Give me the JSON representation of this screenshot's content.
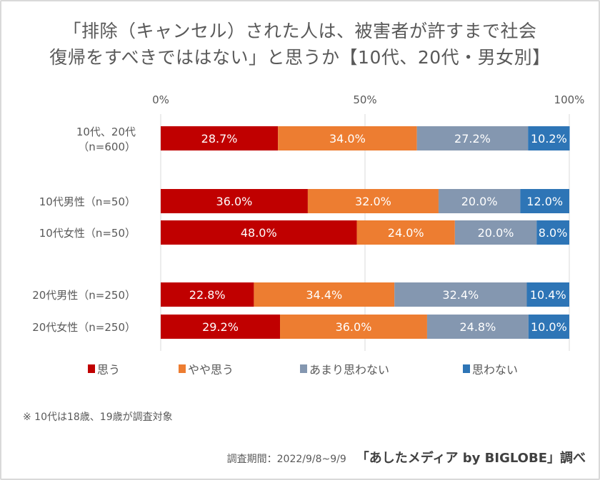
{
  "chart_data": {
    "type": "bar",
    "orientation": "horizontal",
    "stacked": "percent",
    "title": "「排除（キャンセル）された人は、被害者が許すまで社会復帰をすべきでははない」と思うか【10代、20代・男女別】",
    "title_lines": [
      "「排除（キャンセル）された人は、被害者が許すまで社会",
      "復帰をすべきでははない」と思うか【10代、20代・男女別】"
    ],
    "xlabel": "",
    "ylabel": "",
    "xlim": [
      0,
      100
    ],
    "x_ticks": [
      "0%",
      "50%",
      "100%"
    ],
    "x_tick_values": [
      0,
      50,
      100
    ],
    "grid": true,
    "legend_position": "bottom",
    "categories": [
      [
        "10代、20代",
        "（n=600）"
      ],
      [
        "10代男性（n=50）"
      ],
      [
        "10代女性（n=50）"
      ],
      [
        "20代男性（n=250）"
      ],
      [
        "20代女性（n=250）"
      ]
    ],
    "category_groups": [
      [
        0
      ],
      [
        1,
        2
      ],
      [
        3,
        4
      ]
    ],
    "series": [
      {
        "name": "思う",
        "color": "#c00000",
        "values": [
          28.7,
          36.0,
          48.0,
          22.8,
          29.2
        ]
      },
      {
        "name": "やや思う",
        "color": "#ed7d31",
        "values": [
          34.0,
          32.0,
          24.0,
          34.4,
          36.0
        ]
      },
      {
        "name": "あまり思わない",
        "color": "#8497b0",
        "values": [
          27.2,
          20.0,
          20.0,
          32.4,
          24.8
        ]
      },
      {
        "name": "思わない",
        "color": "#2e75b6",
        "values": [
          10.2,
          12.0,
          8.0,
          10.4,
          10.0
        ]
      }
    ]
  },
  "note": "※ 10代は18歳、19歳が調査対象",
  "footer": {
    "period": "調査期間：2022/9/8~9/9",
    "source": "「あしたメディア by BIGLOBE」調べ"
  }
}
